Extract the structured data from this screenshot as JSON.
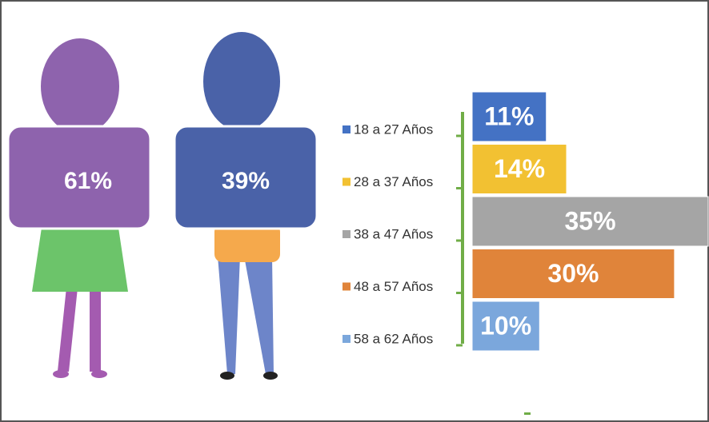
{
  "chart_data": [
    {
      "type": "pictogram",
      "values": [
        61,
        39
      ],
      "value_labels": [
        "61%",
        "39%"
      ],
      "colors": [
        "#8e63ad",
        "#4a62a8"
      ]
    },
    {
      "type": "bar",
      "orientation": "horizontal",
      "categories": [
        "18 a 27 Años",
        "28 a 37 Años",
        "38 a 47 Años",
        "48 a 57 Años",
        "58 a 62 Años"
      ],
      "values": [
        11,
        14,
        35,
        30,
        10
      ],
      "value_labels": [
        "11%",
        "14%",
        "35%",
        "30%",
        "10%"
      ],
      "colors": [
        "#4472c4",
        "#f2c132",
        "#a5a5a5",
        "#e0843a",
        "#7ba7dc"
      ]
    }
  ]
}
